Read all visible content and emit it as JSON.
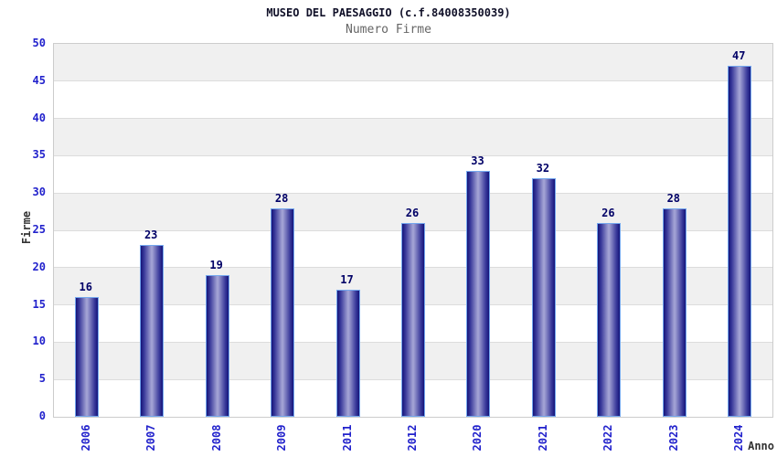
{
  "chart_data": {
    "type": "bar",
    "title": "MUSEO DEL PAESAGGIO (c.f.84008350039)",
    "subtitle": "Numero Firme",
    "xlabel": "Anno",
    "ylabel": "Firme",
    "categories": [
      "2006",
      "2007",
      "2008",
      "2009",
      "2011",
      "2012",
      "2020",
      "2021",
      "2022",
      "2023",
      "2024"
    ],
    "values": [
      16,
      23,
      19,
      28,
      17,
      26,
      33,
      32,
      26,
      28,
      47
    ],
    "ylim": [
      0,
      50
    ],
    "ytick_step": 5,
    "grid": "alternating-horizontal-bands",
    "legend": "none",
    "colors": {
      "title": "#101028",
      "subtitle": "#666666",
      "tick_label": "#2222cc",
      "value_label": "#000066",
      "axis_title": "#333333",
      "bar_dark": "#14147a",
      "bar_mid": "#3c3c9c",
      "bar_light": "#a2a2d4",
      "bar_border": "#74a7ee",
      "band_gray": "#f0f0f0",
      "grid_line": "#dcdcdc",
      "plot_border": "#cccccc"
    }
  }
}
